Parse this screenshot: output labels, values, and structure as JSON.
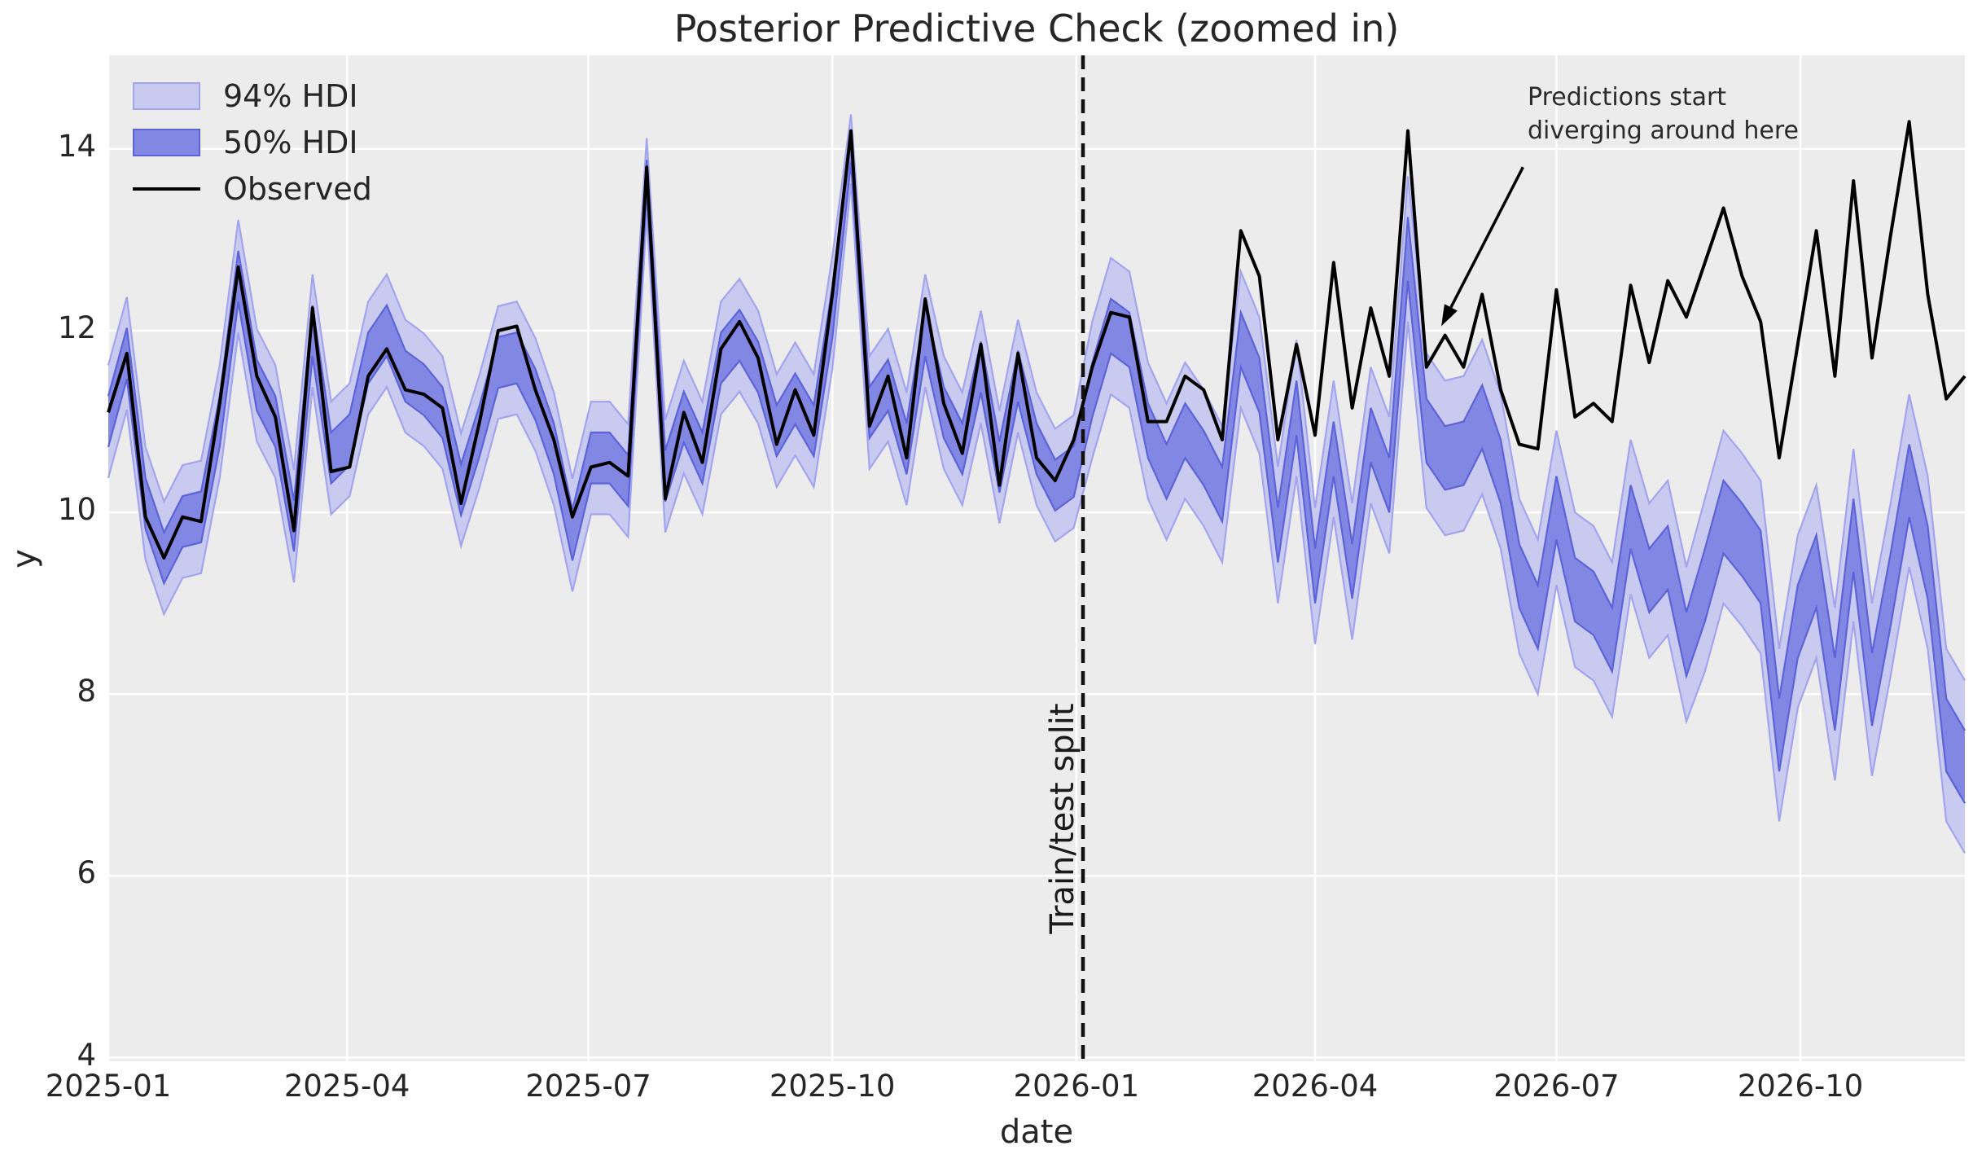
{
  "title": "Posterior Predictive Check (zoomed in)",
  "axes": {
    "xlabel": "date",
    "ylabel": "y",
    "x_tick_labels": [
      "2025-01",
      "2025-04",
      "2025-07",
      "2025-10",
      "2026-01",
      "2026-04",
      "2026-07",
      "2026-10"
    ],
    "x_tick_day_offsets": [
      0,
      90,
      181,
      273,
      365,
      455,
      546,
      638
    ],
    "y_tick_labels": [
      "4",
      "6",
      "8",
      "10",
      "12",
      "14"
    ],
    "y_tick_values": [
      4,
      6,
      8,
      10,
      12,
      14
    ],
    "grid": true
  },
  "legend": {
    "items": [
      {
        "label": "94% HDI",
        "swatch": "hdi94"
      },
      {
        "label": "50% HDI",
        "swatch": "hdi50"
      },
      {
        "label": "Observed",
        "swatch": "line"
      }
    ]
  },
  "annotation": {
    "line1": "Predictions start",
    "line2": "diverging around here",
    "arrow_tip_index": 71.8,
    "arrow_tip_y": 12.05,
    "arrow_tail_index": 76.2,
    "arrow_tail_y": 13.8
  },
  "split": {
    "label": "Train/test split",
    "at_index": 52.5
  },
  "colors": {
    "hdi94_fill": "#c9caf0",
    "hdi94_edge": "#a2a5ee",
    "hdi50_fill": "#8387e4",
    "hdi50_edge": "#5c63d8",
    "observed": "#000000",
    "plot_bg": "#ececec",
    "grid": "#ffffff",
    "split_line": "#111111",
    "text": "#262626"
  },
  "chart_data": {
    "type": "line",
    "title": "Posterior Predictive Check (zoomed in)",
    "xlabel": "date",
    "ylabel": "y",
    "x_start_date": "2025-01-01",
    "x_step_days": 7,
    "n_points": 101,
    "ylim": [
      3.96,
      15.03
    ],
    "legend_position": "upper left",
    "split_at_index": 52.5,
    "observed": [
      11.1,
      11.75,
      9.95,
      9.5,
      9.95,
      9.9,
      11.2,
      12.7,
      11.5,
      11.05,
      9.8,
      12.25,
      10.45,
      10.5,
      11.5,
      11.8,
      11.35,
      11.3,
      11.15,
      10.1,
      11.0,
      12.0,
      12.05,
      11.35,
      10.8,
      9.95,
      10.5,
      10.55,
      10.4,
      13.8,
      10.15,
      11.1,
      10.55,
      11.8,
      12.1,
      11.7,
      10.75,
      11.35,
      10.85,
      12.4,
      14.2,
      10.95,
      11.5,
      10.6,
      12.35,
      11.2,
      10.65,
      11.85,
      10.3,
      11.75,
      10.6,
      10.35,
      10.8,
      11.6,
      12.2,
      12.15,
      11.0,
      11.0,
      11.5,
      11.35,
      10.8,
      13.1,
      12.6,
      10.8,
      11.85,
      10.85,
      12.75,
      11.15,
      12.25,
      11.5,
      14.2,
      11.6,
      11.95,
      11.6,
      12.4,
      11.35,
      10.75,
      10.7,
      12.45,
      11.05,
      11.2,
      11.0,
      12.5,
      11.65,
      12.55,
      12.15,
      12.75,
      13.35,
      12.6,
      12.1,
      10.6,
      11.85,
      13.1,
      11.5,
      13.65,
      11.7,
      13.05,
      14.3,
      12.4,
      11.25,
      11.5
    ],
    "pred_mean": [
      11.0,
      11.75,
      10.1,
      9.5,
      9.9,
      9.95,
      11.0,
      12.6,
      11.4,
      11.0,
      9.85,
      12.0,
      10.6,
      10.8,
      11.7,
      12.0,
      11.5,
      11.35,
      11.1,
      10.25,
      10.9,
      11.65,
      11.7,
      11.3,
      10.7,
      9.75,
      10.6,
      10.6,
      10.35,
      13.7,
      10.4,
      11.05,
      10.6,
      11.7,
      11.95,
      11.6,
      10.9,
      11.25,
      10.9,
      12.2,
      14.0,
      11.1,
      11.4,
      10.7,
      12.0,
      11.1,
      10.7,
      11.6,
      10.5,
      11.5,
      10.7,
      10.3,
      10.45,
      11.35,
      12.05,
      11.9,
      10.9,
      10.45,
      10.9,
      10.6,
      10.2,
      11.9,
      11.4,
      9.75,
      11.15,
      9.3,
      10.7,
      9.35,
      10.85,
      10.3,
      12.9,
      10.9,
      10.6,
      10.65,
      11.05,
      10.45,
      9.3,
      8.85,
      10.05,
      9.15,
      9.0,
      8.6,
      9.95,
      9.25,
      9.5,
      8.55,
      9.2,
      9.95,
      9.7,
      9.4,
      7.55,
      8.8,
      9.35,
      8.0,
      9.75,
      8.05,
      9.15,
      10.35,
      9.45,
      7.55,
      7.2
    ],
    "hdi50_half_width": [
      0.28,
      0.28,
      0.28,
      0.28,
      0.28,
      0.28,
      0.28,
      0.28,
      0.28,
      0.28,
      0.28,
      0.28,
      0.28,
      0.28,
      0.28,
      0.28,
      0.28,
      0.28,
      0.28,
      0.28,
      0.28,
      0.28,
      0.28,
      0.28,
      0.28,
      0.28,
      0.28,
      0.28,
      0.28,
      0.18,
      0.28,
      0.28,
      0.28,
      0.28,
      0.28,
      0.28,
      0.28,
      0.28,
      0.28,
      0.28,
      0.15,
      0.28,
      0.28,
      0.28,
      0.28,
      0.28,
      0.28,
      0.28,
      0.28,
      0.28,
      0.28,
      0.28,
      0.28,
      0.3,
      0.3,
      0.3,
      0.3,
      0.3,
      0.3,
      0.3,
      0.3,
      0.3,
      0.3,
      0.3,
      0.3,
      0.3,
      0.3,
      0.3,
      0.3,
      0.3,
      0.35,
      0.35,
      0.35,
      0.35,
      0.35,
      0.35,
      0.35,
      0.35,
      0.35,
      0.35,
      0.35,
      0.35,
      0.35,
      0.35,
      0.35,
      0.35,
      0.4,
      0.4,
      0.4,
      0.4,
      0.4,
      0.4,
      0.4,
      0.4,
      0.4,
      0.4,
      0.4,
      0.4,
      0.4,
      0.4,
      0.4
    ],
    "hdi94_half_width": [
      0.62,
      0.62,
      0.62,
      0.62,
      0.62,
      0.62,
      0.62,
      0.62,
      0.62,
      0.62,
      0.62,
      0.62,
      0.62,
      0.62,
      0.62,
      0.62,
      0.62,
      0.62,
      0.62,
      0.62,
      0.62,
      0.62,
      0.62,
      0.62,
      0.62,
      0.62,
      0.62,
      0.62,
      0.62,
      0.42,
      0.62,
      0.62,
      0.62,
      0.62,
      0.62,
      0.62,
      0.62,
      0.62,
      0.62,
      0.62,
      0.38,
      0.62,
      0.62,
      0.62,
      0.62,
      0.62,
      0.62,
      0.62,
      0.62,
      0.62,
      0.62,
      0.62,
      0.62,
      0.75,
      0.75,
      0.75,
      0.75,
      0.75,
      0.75,
      0.75,
      0.75,
      0.75,
      0.75,
      0.75,
      0.75,
      0.75,
      0.75,
      0.75,
      0.75,
      0.75,
      0.8,
      0.85,
      0.85,
      0.85,
      0.85,
      0.85,
      0.85,
      0.85,
      0.85,
      0.85,
      0.85,
      0.85,
      0.85,
      0.85,
      0.85,
      0.85,
      0.95,
      0.95,
      0.95,
      0.95,
      0.95,
      0.95,
      0.95,
      0.95,
      0.95,
      0.95,
      0.95,
      0.95,
      0.95,
      0.95,
      0.95
    ]
  }
}
